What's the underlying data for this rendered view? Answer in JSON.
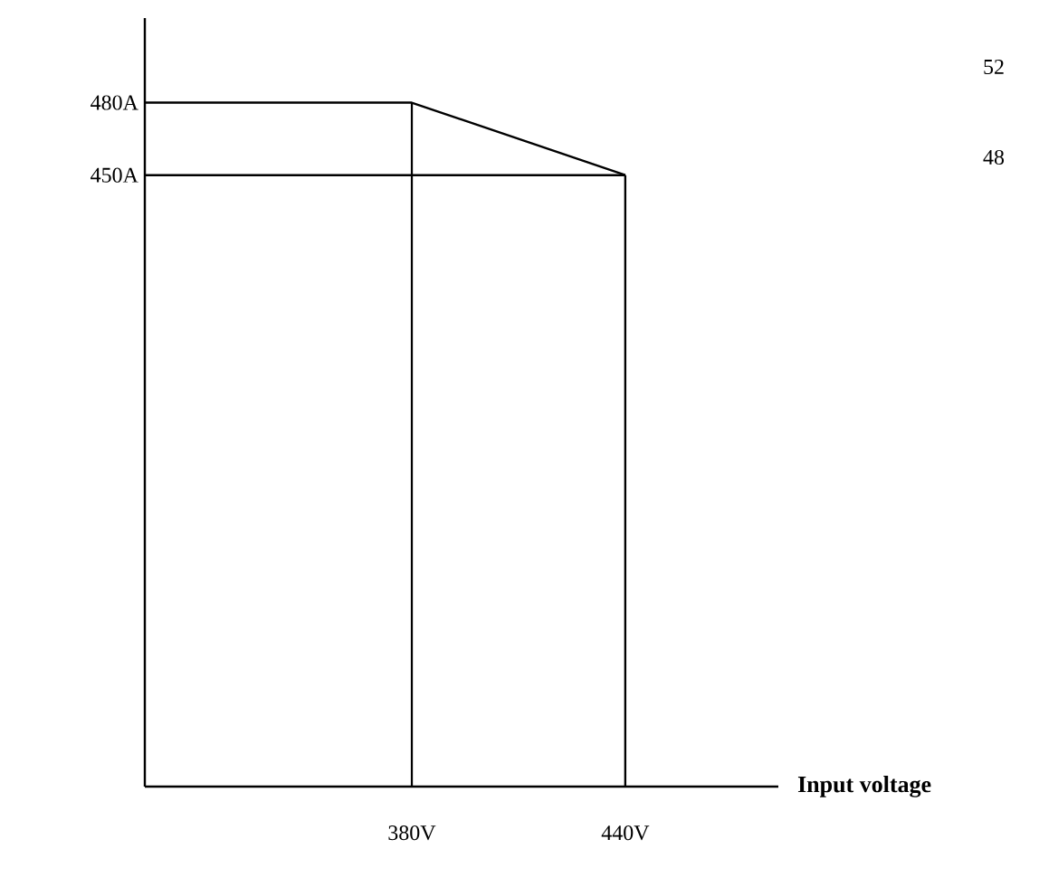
{
  "chart_data": {
    "type": "line",
    "xlabel": "Input voltage",
    "xlim": [
      305,
      483
    ],
    "ylim": [
      197,
      515
    ],
    "xticks": [
      {
        "value": 380,
        "label": "380V"
      },
      {
        "value": 440,
        "label": "440V"
      }
    ],
    "yticks": [
      {
        "value": 480,
        "label": "480A"
      },
      {
        "value": 450,
        "label": "450A"
      }
    ],
    "series": [
      {
        "color": "#000000",
        "x": [
          305,
          380,
          440
        ],
        "values": [
          480,
          480,
          450
        ]
      },
      {
        "color": "#000000",
        "x": [
          305,
          440
        ],
        "values": [
          450,
          450
        ]
      },
      {
        "color": "#000000",
        "x": [
          380,
          380
        ],
        "values": [
          197,
          480
        ]
      },
      {
        "color": "#000000",
        "x": [
          440,
          440
        ],
        "values": [
          197,
          450
        ]
      }
    ],
    "annotations": [
      "52",
      "48"
    ]
  }
}
